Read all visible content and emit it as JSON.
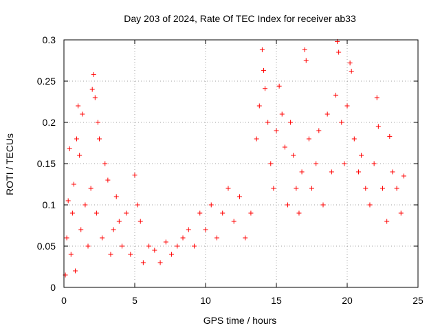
{
  "chart_data": {
    "type": "scatter",
    "title": "Day 203 of 2024, Rate Of TEC Index for receiver ab33",
    "xlabel": "GPS time / hours",
    "ylabel": "ROTI / TECUs",
    "xlim": [
      0,
      25
    ],
    "ylim": [
      0,
      0.3
    ],
    "x_ticks": [
      0,
      5,
      10,
      15,
      20,
      25
    ],
    "y_ticks": [
      0,
      0.05,
      0.1,
      0.15,
      0.2,
      0.25,
      0.3
    ],
    "x_tick_labels": [
      "0",
      "5",
      "10",
      "15",
      "20",
      "25"
    ],
    "y_tick_labels": [
      "0",
      "0.05",
      "0.1",
      "0.15",
      "0.2",
      "0.25",
      "0.3"
    ],
    "grid": true,
    "marker": "+",
    "series": [
      {
        "color": "#ff0000",
        "points": [
          [
            0.1,
            0.015
          ],
          [
            0.2,
            0.06
          ],
          [
            0.3,
            0.105
          ],
          [
            0.4,
            0.168
          ],
          [
            0.5,
            0.04
          ],
          [
            0.6,
            0.09
          ],
          [
            0.7,
            0.125
          ],
          [
            0.8,
            0.02
          ],
          [
            0.9,
            0.18
          ],
          [
            1.0,
            0.22
          ],
          [
            1.1,
            0.16
          ],
          [
            1.2,
            0.07
          ],
          [
            1.3,
            0.21
          ],
          [
            1.5,
            0.1
          ],
          [
            1.7,
            0.05
          ],
          [
            1.9,
            0.12
          ],
          [
            2.0,
            0.24
          ],
          [
            2.1,
            0.258
          ],
          [
            2.2,
            0.23
          ],
          [
            2.3,
            0.09
          ],
          [
            2.4,
            0.2
          ],
          [
            2.5,
            0.18
          ],
          [
            2.7,
            0.06
          ],
          [
            2.9,
            0.15
          ],
          [
            3.1,
            0.13
          ],
          [
            3.3,
            0.04
          ],
          [
            3.5,
            0.07
          ],
          [
            3.7,
            0.11
          ],
          [
            3.9,
            0.08
          ],
          [
            4.1,
            0.05
          ],
          [
            4.4,
            0.09
          ],
          [
            4.7,
            0.04
          ],
          [
            5.0,
            0.136
          ],
          [
            5.2,
            0.1
          ],
          [
            5.4,
            0.08
          ],
          [
            5.6,
            0.03
          ],
          [
            6.0,
            0.05
          ],
          [
            6.4,
            0.045
          ],
          [
            6.8,
            0.03
          ],
          [
            7.2,
            0.055
          ],
          [
            7.6,
            0.04
          ],
          [
            8.0,
            0.05
          ],
          [
            8.4,
            0.06
          ],
          [
            8.8,
            0.07
          ],
          [
            9.2,
            0.05
          ],
          [
            9.6,
            0.09
          ],
          [
            10.0,
            0.07
          ],
          [
            10.4,
            0.1
          ],
          [
            10.8,
            0.06
          ],
          [
            11.2,
            0.09
          ],
          [
            11.6,
            0.12
          ],
          [
            12.0,
            0.08
          ],
          [
            12.4,
            0.11
          ],
          [
            12.8,
            0.06
          ],
          [
            13.2,
            0.09
          ],
          [
            13.6,
            0.18
          ],
          [
            13.8,
            0.22
          ],
          [
            14.0,
            0.288
          ],
          [
            14.1,
            0.263
          ],
          [
            14.2,
            0.241
          ],
          [
            14.4,
            0.2
          ],
          [
            14.6,
            0.15
          ],
          [
            14.8,
            0.12
          ],
          [
            15.0,
            0.19
          ],
          [
            15.2,
            0.244
          ],
          [
            15.4,
            0.21
          ],
          [
            15.6,
            0.17
          ],
          [
            15.8,
            0.1
          ],
          [
            16.0,
            0.2
          ],
          [
            16.2,
            0.16
          ],
          [
            16.4,
            0.12
          ],
          [
            16.6,
            0.09
          ],
          [
            16.8,
            0.14
          ],
          [
            17.0,
            0.288
          ],
          [
            17.1,
            0.275
          ],
          [
            17.3,
            0.18
          ],
          [
            17.5,
            0.12
          ],
          [
            17.8,
            0.15
          ],
          [
            18.0,
            0.19
          ],
          [
            18.3,
            0.1
          ],
          [
            18.6,
            0.21
          ],
          [
            18.9,
            0.14
          ],
          [
            19.2,
            0.233
          ],
          [
            19.3,
            0.298
          ],
          [
            19.4,
            0.285
          ],
          [
            19.6,
            0.2
          ],
          [
            19.8,
            0.15
          ],
          [
            20.0,
            0.22
          ],
          [
            20.2,
            0.272
          ],
          [
            20.3,
            0.262
          ],
          [
            20.5,
            0.18
          ],
          [
            20.8,
            0.14
          ],
          [
            21.0,
            0.16
          ],
          [
            21.3,
            0.12
          ],
          [
            21.6,
            0.1
          ],
          [
            21.9,
            0.15
          ],
          [
            22.1,
            0.23
          ],
          [
            22.2,
            0.195
          ],
          [
            22.5,
            0.12
          ],
          [
            22.8,
            0.08
          ],
          [
            23.0,
            0.183
          ],
          [
            23.2,
            0.14
          ],
          [
            23.5,
            0.12
          ],
          [
            23.8,
            0.09
          ],
          [
            24.0,
            0.135
          ]
        ]
      }
    ]
  }
}
